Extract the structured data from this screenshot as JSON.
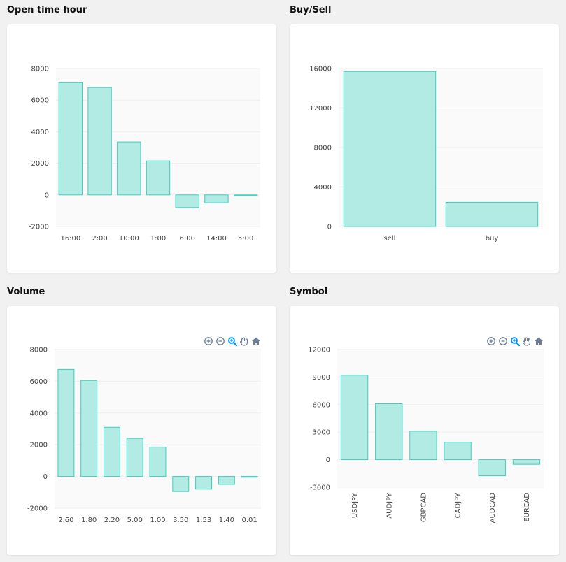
{
  "colors": {
    "bar_fill": "#b2ebe4",
    "bar_stroke": "#3ccfbd",
    "grid": "#eeeeee",
    "plot_bg": "#fafafa",
    "tick_text": "#444444",
    "toolbar_icon": "#6b7c93",
    "toolbar_active": "#008ffb"
  },
  "toolbar_icons": [
    "zoom-in-icon",
    "zoom-out-icon",
    "zoom-select-icon",
    "pan-icon",
    "home-icon"
  ],
  "chart_data": [
    {
      "title": "Open time hour",
      "type": "bar",
      "categories": [
        "16:00",
        "2:00",
        "10:00",
        "1:00",
        "6:00",
        "14:00",
        "5:00"
      ],
      "values": [
        7100,
        6800,
        3350,
        2150,
        -800,
        -500,
        -50
      ],
      "ylim": [
        -2000,
        8000
      ],
      "yticks": [
        "8000",
        "6000",
        "4000",
        "2000",
        "0",
        "-2000"
      ],
      "xlabel": "",
      "ylabel": "",
      "grid": true,
      "toolbar": false
    },
    {
      "title": "Buy/Sell",
      "type": "bar",
      "categories": [
        "sell",
        "buy"
      ],
      "values": [
        15700,
        2450
      ],
      "ylim": [
        0,
        16000
      ],
      "yticks": [
        "16000",
        "12000",
        "8000",
        "4000",
        "0"
      ],
      "xlabel": "",
      "ylabel": "",
      "grid": true,
      "toolbar": false
    },
    {
      "title": "Volume",
      "type": "bar",
      "categories": [
        "2.60",
        "1.80",
        "2.20",
        "5.00",
        "1.00",
        "3.50",
        "1.53",
        "1.40",
        "0.01"
      ],
      "values": [
        6750,
        6050,
        3100,
        2400,
        1850,
        -950,
        -800,
        -500,
        -50
      ],
      "ylim": [
        -2000,
        8000
      ],
      "yticks": [
        "8000",
        "6000",
        "4000",
        "2000",
        "0",
        "-2000"
      ],
      "xlabel": "",
      "ylabel": "",
      "grid": true,
      "toolbar": true
    },
    {
      "title": "Symbol",
      "type": "bar",
      "categories": [
        "USDJPY",
        "AUDJPY",
        "GBPCAD",
        "CADJPY",
        "AUDCAD",
        "EURCAD"
      ],
      "values": [
        9200,
        6100,
        3100,
        1900,
        -1750,
        -500
      ],
      "ylim": [
        -3000,
        12000
      ],
      "yticks": [
        "12000",
        "9000",
        "6000",
        "3000",
        "0",
        "-3000"
      ],
      "xlabel": "",
      "ylabel": "",
      "grid": true,
      "toolbar": true,
      "rotate_labels": true
    }
  ]
}
